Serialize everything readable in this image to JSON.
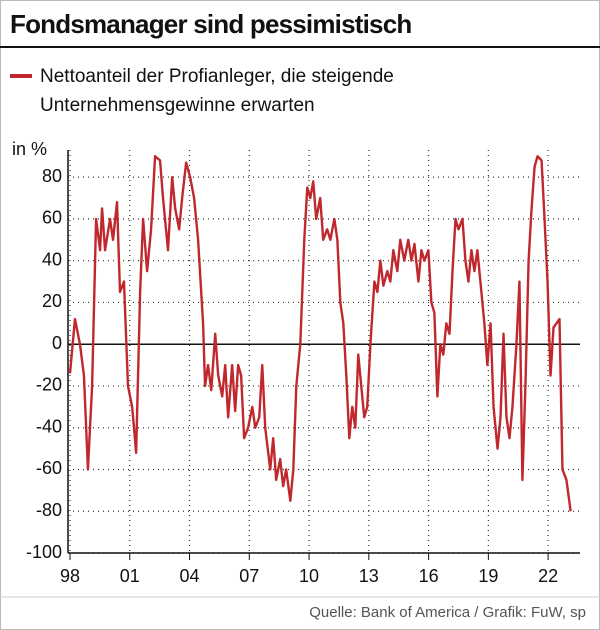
{
  "chart_data": {
    "type": "line",
    "title": "Fondsmanager sind pessimistisch",
    "y_label": "in %",
    "source": "Quelle: Bank of America / Grafik: FuW, sp",
    "x": [
      1998.0,
      1998.25,
      1998.5,
      1998.7,
      1998.9,
      1999.11,
      1999.31,
      1999.51,
      1999.61,
      1999.76,
      2000.01,
      2000.16,
      2000.36,
      2000.51,
      2000.71,
      2000.91,
      2001.12,
      2001.32,
      2001.52,
      2001.67,
      2001.87,
      2002.07,
      2002.27,
      2002.52,
      2002.67,
      2002.92,
      2003.13,
      2003.28,
      2003.48,
      2003.63,
      2003.83,
      2004.03,
      2004.23,
      2004.43,
      2004.68,
      2004.78,
      2004.93,
      2005.09,
      2005.29,
      2005.44,
      2005.64,
      2005.79,
      2005.94,
      2006.14,
      2006.29,
      2006.44,
      2006.59,
      2006.74,
      2006.94,
      2007.15,
      2007.3,
      2007.5,
      2007.65,
      2007.8,
      2008.05,
      2008.2,
      2008.35,
      2008.55,
      2008.7,
      2008.85,
      2009.06,
      2009.21,
      2009.36,
      2009.56,
      2009.76,
      2009.91,
      2010.06,
      2010.21,
      2010.36,
      2010.56,
      2010.71,
      2010.91,
      2011.07,
      2011.27,
      2011.42,
      2011.57,
      2011.72,
      2011.87,
      2012.02,
      2012.17,
      2012.32,
      2012.47,
      2012.62,
      2012.77,
      2012.92,
      2013.08,
      2013.28,
      2013.43,
      2013.58,
      2013.73,
      2013.93,
      2014.08,
      2014.23,
      2014.43,
      2014.58,
      2014.78,
      2014.98,
      2015.14,
      2015.29,
      2015.49,
      2015.64,
      2015.79,
      2015.99,
      2016.14,
      2016.29,
      2016.44,
      2016.59,
      2016.74,
      2016.89,
      2017.05,
      2017.2,
      2017.35,
      2017.5,
      2017.7,
      2017.85,
      2018.0,
      2018.15,
      2018.3,
      2018.45,
      2018.65,
      2018.8,
      2018.95,
      2019.11,
      2019.26,
      2019.46,
      2019.61,
      2019.76,
      2019.91,
      2020.06,
      2020.21,
      2020.41,
      2020.56,
      2020.71,
      2020.86,
      2021.02,
      2021.17,
      2021.32,
      2021.47,
      2021.67,
      2021.82,
      2021.97,
      2022.12,
      2022.27,
      2022.42,
      2022.57,
      2022.72,
      2022.92,
      2023.13
    ],
    "series": [
      {
        "name": "Nettoanteil der Profianleger, die steigende Unternehmensgewinne erwarten",
        "color": "#c0282d",
        "values": [
          -14,
          12,
          0,
          -15,
          -60,
          -20,
          60,
          45,
          65,
          45,
          60,
          50,
          68,
          25,
          30,
          -20,
          -30,
          -52,
          25,
          60,
          35,
          55,
          90,
          88,
          70,
          45,
          80,
          65,
          55,
          70,
          87,
          80,
          70,
          50,
          10,
          -20,
          -10,
          -22,
          5,
          -15,
          -25,
          -10,
          -35,
          -10,
          -32,
          -10,
          -15,
          -45,
          -40,
          -30,
          -40,
          -35,
          -10,
          -40,
          -60,
          -45,
          -65,
          -55,
          -68,
          -60,
          -75,
          -60,
          -20,
          0,
          50,
          75,
          70,
          78,
          60,
          70,
          50,
          55,
          50,
          60,
          50,
          20,
          10,
          -15,
          -45,
          -30,
          -40,
          -5,
          -20,
          -35,
          -30,
          0,
          30,
          25,
          40,
          28,
          35,
          30,
          45,
          35,
          50,
          40,
          50,
          40,
          48,
          30,
          45,
          40,
          45,
          20,
          15,
          -25,
          0,
          -5,
          10,
          5,
          35,
          60,
          55,
          60,
          40,
          30,
          45,
          35,
          45,
          25,
          10,
          -10,
          10,
          -30,
          -50,
          -35,
          5,
          -35,
          -45,
          -30,
          0,
          30,
          -65,
          -20,
          40,
          65,
          85,
          90,
          88,
          60,
          30,
          -15,
          8,
          10,
          12,
          -60,
          -65,
          -80
        ]
      }
    ],
    "xlim": [
      1997.9,
      2023.6
    ],
    "xticks": [
      {
        "value": 1998,
        "label": "98"
      },
      {
        "value": 2001,
        "label": "01"
      },
      {
        "value": 2004,
        "label": "04"
      },
      {
        "value": 2007,
        "label": "07"
      },
      {
        "value": 2010,
        "label": "10"
      },
      {
        "value": 2013,
        "label": "13"
      },
      {
        "value": 2016,
        "label": "16"
      },
      {
        "value": 2019,
        "label": "19"
      },
      {
        "value": 2022,
        "label": "22"
      }
    ],
    "ylim": [
      -100,
      93
    ],
    "yticks": [
      -100,
      -80,
      -60,
      -40,
      -20,
      0,
      20,
      40,
      60,
      80
    ],
    "grid": true
  }
}
